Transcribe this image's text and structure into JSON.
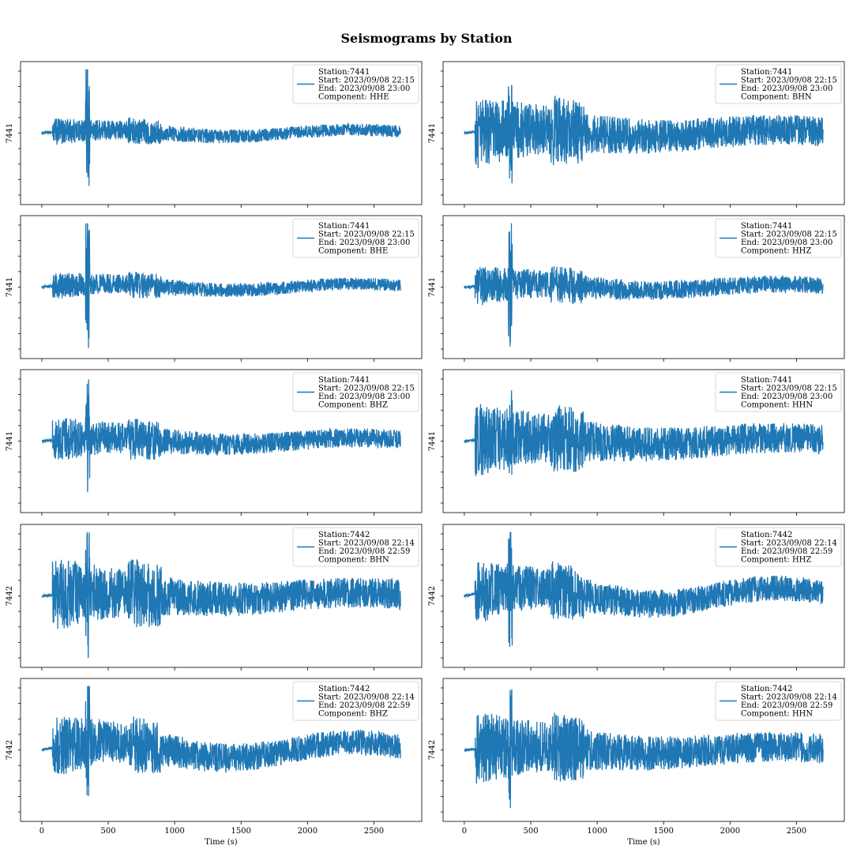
{
  "figure": {
    "title": "Seismograms by Station"
  },
  "chart_data": [
    {
      "type": "line",
      "ylabel": "7441",
      "series_color": "#1f77b4",
      "xlim": [
        -160,
        2860
      ],
      "legend": {
        "placement": "top-right",
        "lines": [
          "Station:7441",
          "Start: 2023/09/08 22:15",
          "End: 2023/09/08 23:00",
          "Component: HHE"
        ]
      },
      "xticks": [],
      "xlabel": ""
    },
    {
      "type": "line",
      "ylabel": "7441",
      "series_color": "#1f77b4",
      "xlim": [
        -160,
        2860
      ],
      "legend": {
        "placement": "top-right",
        "lines": [
          "Station:7441",
          "Start: 2023/09/08 22:15",
          "End: 2023/09/08 23:00",
          "Component: BHN"
        ]
      },
      "xticks": [],
      "xlabel": ""
    },
    {
      "type": "line",
      "ylabel": "7441",
      "series_color": "#1f77b4",
      "xlim": [
        -160,
        2860
      ],
      "legend": {
        "placement": "top-right",
        "lines": [
          "Station:7441",
          "Start: 2023/09/08 22:15",
          "End: 2023/09/08 23:00",
          "Component: BHE"
        ]
      },
      "xticks": [],
      "xlabel": ""
    },
    {
      "type": "line",
      "ylabel": "7441",
      "series_color": "#1f77b4",
      "xlim": [
        -160,
        2860
      ],
      "legend": {
        "placement": "top-right",
        "lines": [
          "Station:7441",
          "Start: 2023/09/08 22:15",
          "End: 2023/09/08 23:00",
          "Component: HHZ"
        ]
      },
      "xticks": [],
      "xlabel": ""
    },
    {
      "type": "line",
      "ylabel": "7441",
      "series_color": "#1f77b4",
      "xlim": [
        -160,
        2860
      ],
      "legend": {
        "placement": "top-right",
        "lines": [
          "Station:7441",
          "Start: 2023/09/08 22:15",
          "End: 2023/09/08 23:00",
          "Component: BHZ"
        ]
      },
      "xticks": [],
      "xlabel": ""
    },
    {
      "type": "line",
      "ylabel": "7441",
      "series_color": "#1f77b4",
      "xlim": [
        -160,
        2860
      ],
      "legend": {
        "placement": "top-right",
        "lines": [
          "Station:7441",
          "Start: 2023/09/08 22:15",
          "End: 2023/09/08 23:00",
          "Component: HHN"
        ]
      },
      "xticks": [],
      "xlabel": ""
    },
    {
      "type": "line",
      "ylabel": "7442",
      "series_color": "#1f77b4",
      "xlim": [
        -160,
        2860
      ],
      "legend": {
        "placement": "top-right",
        "lines": [
          "Station:7442",
          "Start: 2023/09/08 22:14",
          "End: 2023/09/08 22:59",
          "Component: BHN"
        ]
      },
      "xticks": [],
      "xlabel": ""
    },
    {
      "type": "line",
      "ylabel": "7442",
      "series_color": "#1f77b4",
      "xlim": [
        -160,
        2860
      ],
      "legend": {
        "placement": "top-right",
        "lines": [
          "Station:7442",
          "Start: 2023/09/08 22:14",
          "End: 2023/09/08 22:59",
          "Component: HHZ"
        ]
      },
      "xticks": [],
      "xlabel": ""
    },
    {
      "type": "line",
      "ylabel": "7442",
      "series_color": "#1f77b4",
      "xlim": [
        -160,
        2860
      ],
      "legend": {
        "placement": "top-right",
        "lines": [
          "Station:7442",
          "Start: 2023/09/08 22:14",
          "End: 2023/09/08 22:59",
          "Component: BHZ"
        ]
      },
      "xticks": [
        0,
        500,
        1000,
        1500,
        2000,
        2500
      ],
      "xlabel": "Time (s)"
    },
    {
      "type": "line",
      "ylabel": "7442",
      "series_color": "#1f77b4",
      "xlim": [
        -160,
        2860
      ],
      "legend": {
        "placement": "top-right",
        "lines": [
          "Station:7442",
          "Start: 2023/09/08 22:14",
          "End: 2023/09/08 22:59",
          "Component: HHN"
        ]
      },
      "xticks": [
        0,
        500,
        1000,
        1500,
        2000,
        2500
      ],
      "xlabel": "Time (s)"
    }
  ]
}
